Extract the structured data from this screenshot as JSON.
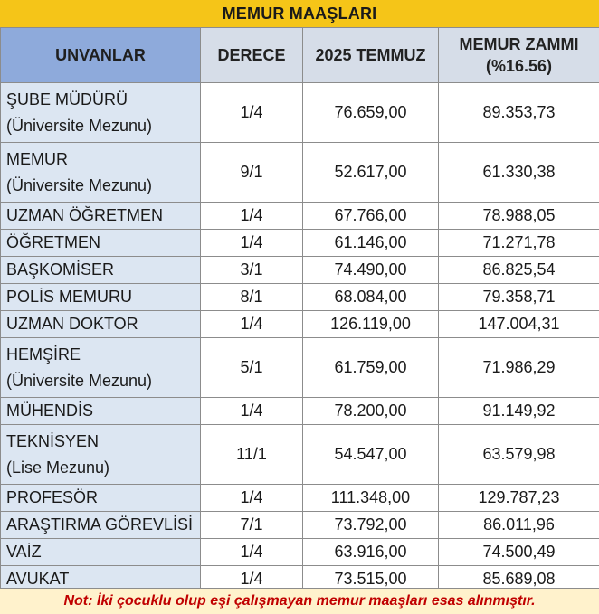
{
  "title": "MEMUR MAAŞLARI",
  "columns": {
    "title": "UNVANLAR",
    "grade": "DERECE",
    "july": "2025 TEMMUZ",
    "raise_line1": "MEMUR ZAMMI",
    "raise_line2": "(%16.56)"
  },
  "rows": [
    {
      "title": "ŞUBE MÜDÜRÜ",
      "sub": "(Üniversite Mezunu)",
      "grade": "1/4",
      "july": "76.659,00",
      "raise": "89.353,73"
    },
    {
      "title": "MEMUR",
      "sub": "(Üniversite Mezunu)",
      "grade": "9/1",
      "july": "52.617,00",
      "raise": "61.330,38"
    },
    {
      "title": "UZMAN ÖĞRETMEN",
      "grade": "1/4",
      "july": "67.766,00",
      "raise": "78.988,05"
    },
    {
      "title": "ÖĞRETMEN",
      "grade": "1/4",
      "july": "61.146,00",
      "raise": "71.271,78"
    },
    {
      "title": "BAŞKOMİSER",
      "grade": "3/1",
      "july": "74.490,00",
      "raise": "86.825,54"
    },
    {
      "title": "POLİS MEMURU",
      "grade": "8/1",
      "july": "68.084,00",
      "raise": "79.358,71"
    },
    {
      "title": "UZMAN DOKTOR",
      "grade": "1/4",
      "july": "126.119,00",
      "raise": "147.004,31"
    },
    {
      "title": "HEMŞİRE",
      "sub": "(Üniversite Mezunu)",
      "grade": "5/1",
      "july": "61.759,00",
      "raise": "71.986,29"
    },
    {
      "title": "MÜHENDİS",
      "grade": "1/4",
      "july": "78.200,00",
      "raise": "91.149,92"
    },
    {
      "title": "TEKNİSYEN",
      "sub": "(Lise Mezunu)",
      "grade": "11/1",
      "july": "54.547,00",
      "raise": "63.579,98"
    },
    {
      "title": "PROFESÖR",
      "grade": "1/4",
      "july": "111.348,00",
      "raise": "129.787,23"
    },
    {
      "title": "ARAŞTIRMA GÖREVLİSİ",
      "grade": "7/1",
      "july": "73.792,00",
      "raise": "86.011,96"
    },
    {
      "title": "VAİZ",
      "grade": "1/4",
      "july": "63.916,00",
      "raise": "74.500,49"
    },
    {
      "title": "AVUKAT",
      "grade": "1/4",
      "july": "73.515,00",
      "raise": "85.689,08"
    }
  ],
  "note": "Not: İki çocuklu olup eşi çalışmayan memur maaşları esas alınmıştır.",
  "colors": {
    "title_bar": "#f5c518",
    "title_header": "#8eaadb",
    "other_header": "#d6dde8",
    "title_cell": "#dce6f2",
    "note_bar": "#fff2cc",
    "note_text": "#c00000"
  }
}
